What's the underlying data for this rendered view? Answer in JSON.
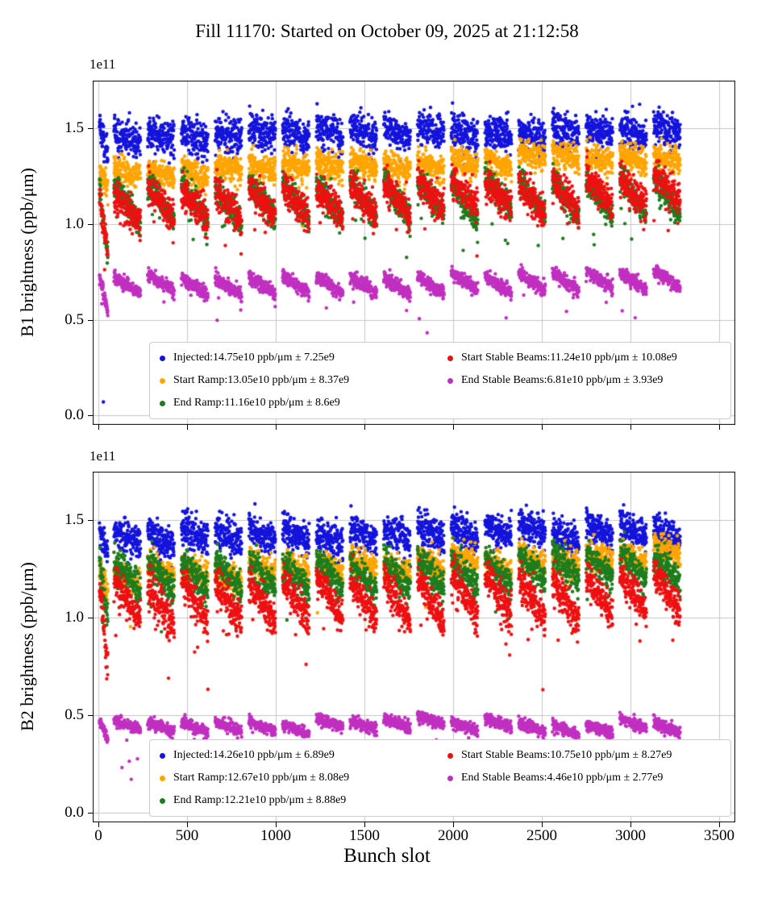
{
  "title": "Fill 11170: Started on October 09, 2025 at 21:12:58",
  "xlabel": "Bunch slot",
  "axis": {
    "x_tick_values": [
      0,
      500,
      1000,
      1500,
      2000,
      2500,
      3000,
      3500
    ],
    "x_tick_labels": [
      "0",
      "500",
      "1000",
      "1500",
      "2000",
      "2500",
      "3000",
      "3500"
    ],
    "y_tick_values": [
      0.0,
      0.5,
      1.0,
      1.5
    ],
    "y_tick_labels": [
      "0.0",
      "0.5",
      "1.0",
      "1.5"
    ],
    "xlim": [
      -30,
      3590
    ],
    "ylim": [
      -0.05,
      1.75
    ],
    "grid": true,
    "grid_color": "#c6c6c6",
    "offset_label": "1e11"
  },
  "chart_data": [
    {
      "type": "scatter",
      "beam": "B1",
      "ylabel": "B1 brightness (ppb/μm)",
      "offset": "1e11",
      "x_range_slots": [
        0,
        3280
      ],
      "legend_columns": [
        [
          0,
          1,
          2
        ],
        [
          3,
          4
        ]
      ],
      "series": [
        {
          "name": "Injected",
          "legend_label": "Injected:14.75e10 ppb/μm ± 7.25e9",
          "color": "#1414dc",
          "mean_e10": 14.75,
          "std_e9": 7.25,
          "slope": 0.03,
          "droop": 0.05,
          "noise": 0.045,
          "straggle": 0.003
        },
        {
          "name": "Start Ramp",
          "legend_label": "Start Ramp:13.05e10 ppb/μm ± 8.37e9",
          "color": "#ffa500",
          "mean_e10": 13.05,
          "std_e9": 8.37,
          "slope": 0.1,
          "droop": 0.05,
          "noise": 0.035,
          "straggle": 0.004
        },
        {
          "name": "End Ramp",
          "legend_label": "End Ramp:11.16e10 ppb/μm ± 8.6e9",
          "color": "#1e7d1e",
          "mean_e10": 11.16,
          "std_e9": 8.6,
          "slope": 0.04,
          "droop": 0.2,
          "noise": 0.035,
          "straggle": 0.014
        },
        {
          "name": "Start Stable Beams",
          "legend_label": "Start Stable Beams:11.24e10 ppb/μm ± 10.08e9",
          "color": "#ee1111",
          "mean_e10": 11.24,
          "std_e9": 10.08,
          "slope": 0.1,
          "droop": 0.16,
          "noise": 0.045,
          "straggle": 0.014
        },
        {
          "name": "End Stable Beams",
          "legend_label": "End Stable Beams:6.81e10 ppb/μm ± 3.93e9",
          "color": "#c030c0",
          "mean_e10": 6.81,
          "std_e9": 3.93,
          "slope": 0.02,
          "droop": 0.09,
          "noise": 0.018,
          "straggle": 0.008
        }
      ],
      "outliers": [
        {
          "series": 0,
          "x": 30,
          "y_e11": 0.07
        }
      ]
    },
    {
      "type": "scatter",
      "beam": "B2",
      "ylabel": "B2 brightness (ppb/μm)",
      "offset": "1e11",
      "x_range_slots": [
        0,
        3280
      ],
      "legend_columns": [
        [
          0,
          1,
          2
        ],
        [
          3,
          4
        ]
      ],
      "series": [
        {
          "name": "Injected",
          "legend_label": "Injected:14.26e10 ppb/μm ± 6.89e9",
          "color": "#1414dc",
          "mean_e10": 14.26,
          "std_e9": 6.89,
          "slope": 0.02,
          "droop": 0.06,
          "noise": 0.042,
          "straggle": 0.003
        },
        {
          "name": "Start Ramp",
          "legend_label": "Start Ramp:12.67e10 ppb/μm ± 8.08e9",
          "color": "#ffa500",
          "mean_e10": 12.67,
          "std_e9": 8.08,
          "slope": 0.1,
          "droop": 0.06,
          "noise": 0.035,
          "straggle": 0.004
        },
        {
          "name": "End Ramp",
          "legend_label": "End Ramp:12.21e10 ppb/μm ± 8.88e9",
          "color": "#1e7d1e",
          "mean_e10": 12.21,
          "std_e9": 8.88,
          "slope": 0.03,
          "droop": 0.15,
          "noise": 0.04,
          "straggle": 0.014
        },
        {
          "name": "Start Stable Beams",
          "legend_label": "Start Stable Beams:10.75e10 ppb/μm ± 8.27e9",
          "color": "#ee1111",
          "mean_e10": 10.75,
          "std_e9": 8.27,
          "slope": 0.05,
          "droop": 0.22,
          "noise": 0.045,
          "straggle": 0.016
        },
        {
          "name": "End Stable Beams",
          "legend_label": "End Stable Beams:4.46e10 ppb/μm ± 2.77e9",
          "color": "#c030c0",
          "mean_e10": 4.46,
          "std_e9": 2.77,
          "slope": 0.0,
          "droop": 0.05,
          "noise": 0.015,
          "straggle": 0.006
        }
      ],
      "outliers": []
    }
  ]
}
